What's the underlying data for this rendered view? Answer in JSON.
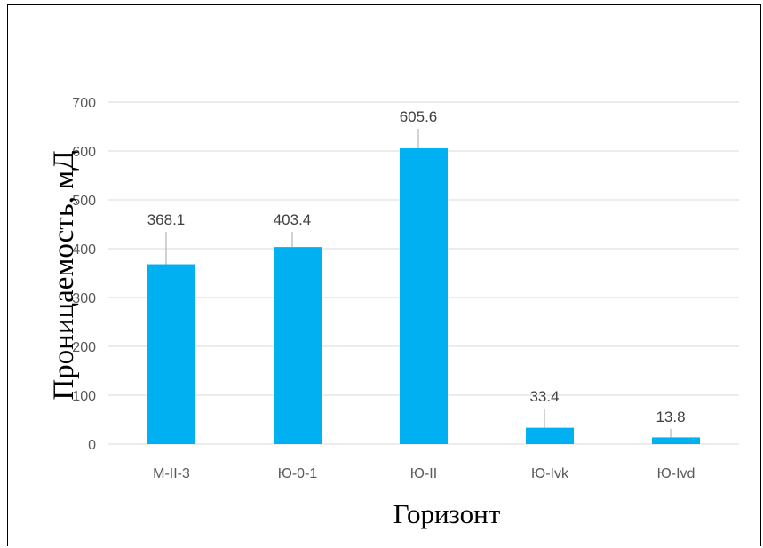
{
  "chart_data": {
    "type": "bar",
    "categories": [
      "M-II-3",
      "Ю-0-1",
      "Ю-II",
      "Ю-Ivk",
      "Ю-Ivd"
    ],
    "values": [
      368.1,
      403.4,
      605.6,
      33.4,
      13.8
    ],
    "data_labels": [
      "368.1",
      "403.4",
      "605.6",
      "33.4",
      "13.8"
    ],
    "xlabel": "Горизонт",
    "ylabel": "Проницаемость, мД",
    "ylim": [
      0,
      700
    ],
    "yticks": [
      0,
      100,
      200,
      300,
      400,
      500,
      600,
      700
    ],
    "grid": true,
    "legend": "none",
    "bar_color": "#00B0F0",
    "grid_color": "#D9D9D9"
  }
}
